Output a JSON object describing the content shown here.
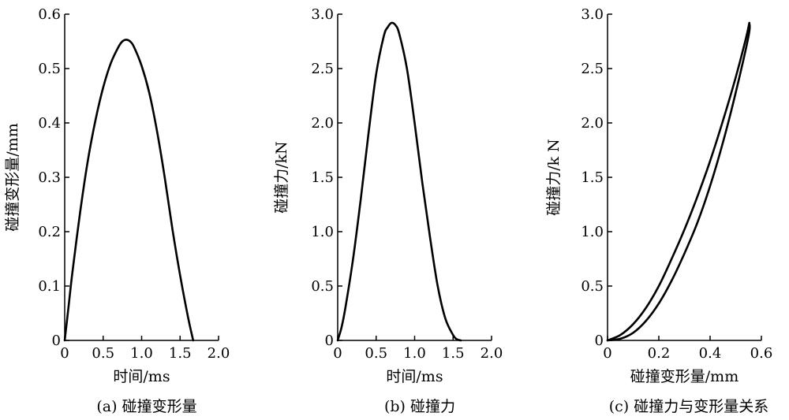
{
  "chart_data": [
    {
      "type": "line",
      "title": "(a) 碰撞变形量",
      "xlabel": "时间/ms",
      "ylabel": "碰撞变形量/mm",
      "xlim": [
        0,
        2.0
      ],
      "ylim": [
        0,
        0.6
      ],
      "xticks": [
        "0",
        "0.5",
        "1.0",
        "1.5",
        "2.0"
      ],
      "yticks": [
        "0",
        "0.1",
        "0.2",
        "0.3",
        "0.4",
        "0.5",
        "0.6"
      ],
      "series": [
        {
          "x": [
            0,
            0.05,
            0.1,
            0.2,
            0.3,
            0.4,
            0.5,
            0.6,
            0.7,
            0.75,
            0.8,
            0.85,
            0.9,
            1.0,
            1.1,
            1.2,
            1.3,
            1.4,
            1.5,
            1.6,
            1.67
          ],
          "y": [
            0,
            0.062,
            0.125,
            0.235,
            0.33,
            0.405,
            0.465,
            0.51,
            0.54,
            0.55,
            0.553,
            0.55,
            0.54,
            0.505,
            0.455,
            0.385,
            0.3,
            0.205,
            0.12,
            0.045,
            0
          ]
        }
      ]
    },
    {
      "type": "line",
      "title": "(b) 碰撞力",
      "xlabel": "时间/ms",
      "ylabel": "碰撞力/kN",
      "xlim": [
        0,
        2.0
      ],
      "ylim": [
        0,
        3.0
      ],
      "xticks": [
        "0",
        "0.5",
        "1.0",
        "1.5",
        "2.0"
      ],
      "yticks": [
        "0",
        "0.5",
        "1.0",
        "1.5",
        "2.0",
        "2.5",
        "3.0"
      ],
      "series": [
        {
          "x": [
            0,
            0.05,
            0.1,
            0.2,
            0.3,
            0.4,
            0.5,
            0.6,
            0.65,
            0.7,
            0.75,
            0.8,
            0.9,
            1.0,
            1.1,
            1.2,
            1.3,
            1.4,
            1.5,
            1.55,
            1.6
          ],
          "y": [
            0,
            0.12,
            0.3,
            0.75,
            1.3,
            1.9,
            2.45,
            2.8,
            2.88,
            2.92,
            2.9,
            2.82,
            2.5,
            2.0,
            1.45,
            0.95,
            0.5,
            0.2,
            0.05,
            0.01,
            0
          ]
        }
      ]
    },
    {
      "type": "line",
      "title": "(c) 碰撞力与变形量关系",
      "xlabel": "碰撞变形量/mm",
      "ylabel": "碰撞力/k N",
      "xlim": [
        0,
        0.6
      ],
      "ylim": [
        0,
        3.0
      ],
      "xticks": [
        "0",
        "0.2",
        "0.4",
        "0.6"
      ],
      "yticks": [
        "0",
        "0.5",
        "1.0",
        "1.5",
        "2.0",
        "2.5",
        "3.0"
      ],
      "series": [
        {
          "x": [
            0,
            0.05,
            0.1,
            0.15,
            0.2,
            0.25,
            0.3,
            0.35,
            0.4,
            0.45,
            0.5,
            0.54,
            0.553
          ],
          "y": [
            0,
            0.05,
            0.15,
            0.3,
            0.5,
            0.75,
            1.02,
            1.32,
            1.65,
            2.02,
            2.42,
            2.78,
            2.92
          ]
        },
        {
          "x": [
            0.553,
            0.55,
            0.5,
            0.45,
            0.4,
            0.35,
            0.3,
            0.25,
            0.2,
            0.15,
            0.1,
            0.05,
            0
          ],
          "y": [
            2.92,
            2.8,
            2.28,
            1.82,
            1.42,
            1.08,
            0.8,
            0.55,
            0.34,
            0.18,
            0.07,
            0.015,
            0
          ]
        }
      ]
    }
  ]
}
